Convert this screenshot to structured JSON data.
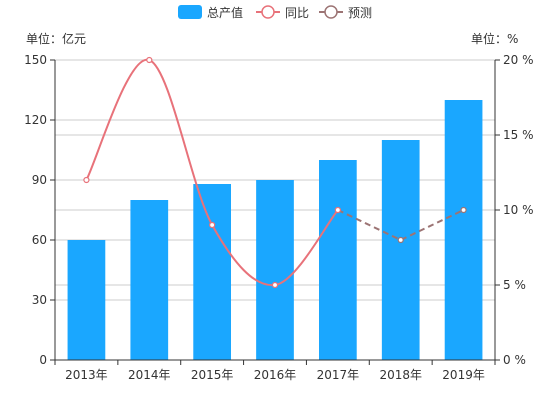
{
  "chart_data": {
    "type": "bar",
    "categories": [
      "2013年",
      "2014年",
      "2015年",
      "2016年",
      "2017年",
      "2018年",
      "2019年"
    ],
    "series": [
      {
        "name": "总产值",
        "type": "bar",
        "axis": "left",
        "values": [
          60,
          80,
          88,
          90,
          100,
          110,
          130
        ]
      },
      {
        "name": "同比",
        "type": "line",
        "smooth": true,
        "axis": "right",
        "values": [
          12,
          20,
          9,
          5,
          10,
          null,
          null
        ]
      },
      {
        "name": "预测",
        "type": "line",
        "dashed": true,
        "axis": "right",
        "values": [
          null,
          null,
          null,
          null,
          10,
          8,
          10
        ]
      }
    ],
    "left_axis": {
      "unit_label": "单位：亿元",
      "ylim": [
        0,
        150
      ],
      "ticks": [
        0,
        30,
        60,
        90,
        120,
        150
      ],
      "tick_labels": [
        "0",
        "30",
        "60",
        "90",
        "120",
        "150"
      ]
    },
    "right_axis": {
      "unit_label": "单位：%",
      "ylim": [
        0,
        20
      ],
      "ticks": [
        0,
        5,
        10,
        15,
        20
      ],
      "tick_labels": [
        "0 %",
        "5 %",
        "10 %",
        "15 %",
        "20 %"
      ]
    },
    "legend": {
      "position": "top-center",
      "items": [
        "总产值",
        "同比",
        "预测"
      ]
    },
    "grid": true,
    "colors": {
      "bar": "#1aa7ff",
      "yoy": "#e8727a",
      "forecast": "#9c7474",
      "grid": "#cccccc",
      "axis": "#333333"
    }
  }
}
